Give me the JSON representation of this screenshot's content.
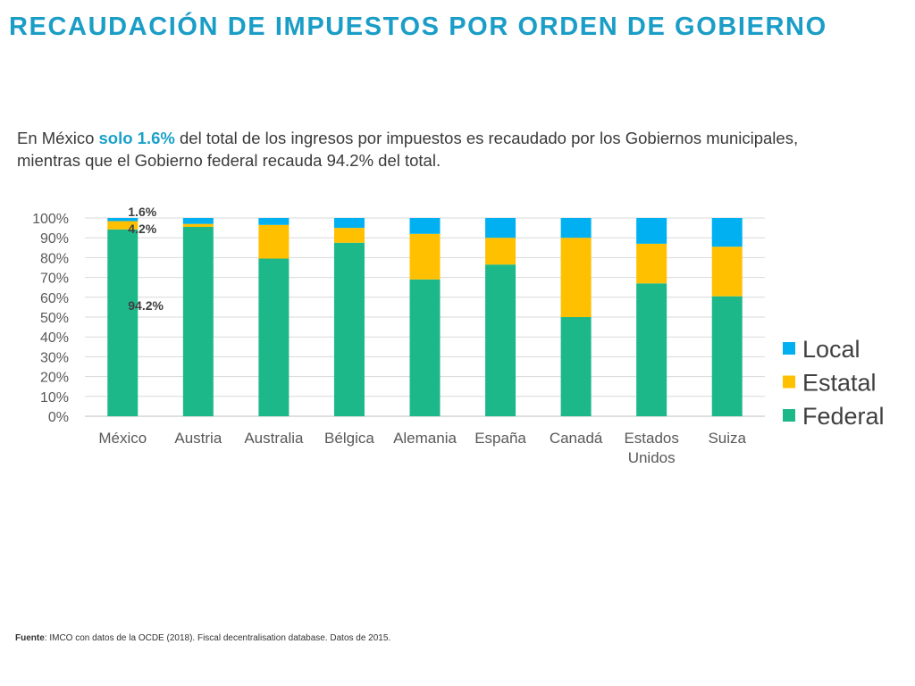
{
  "header": {
    "title": "RECAUDACIÓN DE IMPUESTOS POR ORDEN DE GOBIERNO"
  },
  "intro": {
    "part1": "En México ",
    "highlight": "solo 1.6%",
    "part2": " del total de los ingresos por impuestos es recaudado por los Gobiernos municipales, mientras que el Gobierno federal recauda 94.2% del total."
  },
  "footer": {
    "source_label": "Fuente",
    "source_text": ": IMCO con datos de la OCDE (2018). Fiscal decentralisation database. Datos de 2015."
  },
  "chart_data": {
    "type": "bar",
    "stacked": true,
    "categories": [
      [
        "México"
      ],
      [
        "Austria"
      ],
      [
        "Australia"
      ],
      [
        "Bélgica"
      ],
      [
        "Alemania"
      ],
      [
        "España"
      ],
      [
        "Canadá"
      ],
      [
        "Estados",
        "Unidos"
      ],
      [
        "Suiza"
      ]
    ],
    "series": [
      {
        "name": "Federal",
        "color": "#1db88a",
        "values": [
          94.2,
          95.5,
          79.5,
          87.5,
          69,
          76.5,
          50,
          67,
          60.5
        ]
      },
      {
        "name": "Estatal",
        "color": "#ffc000",
        "values": [
          4.2,
          1.5,
          17,
          7.5,
          23,
          13.5,
          40,
          20,
          25
        ]
      },
      {
        "name": "Local",
        "color": "#00b0f0",
        "values": [
          1.6,
          3,
          3.5,
          5,
          8,
          10,
          10,
          13,
          14.5
        ]
      }
    ],
    "legend_order": [
      "Local",
      "Estatal",
      "Federal"
    ],
    "legend_position": "right",
    "yticks": [
      "0%",
      "10%",
      "20%",
      "30%",
      "40%",
      "50%",
      "60%",
      "70%",
      "80%",
      "90%",
      "100%"
    ],
    "ylim": [
      0,
      100
    ],
    "grid": true,
    "annotations": [
      {
        "text": "1.6%",
        "category": 0,
        "series": "Local"
      },
      {
        "text": "4.2%",
        "category": 0,
        "series": "Estatal"
      },
      {
        "text": "94.2%",
        "category": 0,
        "series": "Federal"
      }
    ]
  }
}
